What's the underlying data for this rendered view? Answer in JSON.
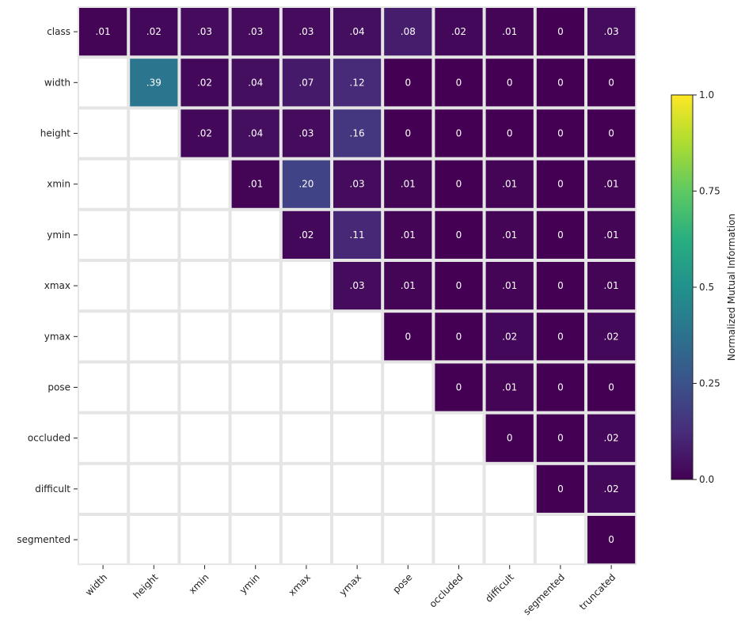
{
  "chart_data": {
    "type": "heatmap",
    "title": "",
    "rows": [
      "class",
      "width",
      "height",
      "xmin",
      "ymin",
      "xmax",
      "ymax",
      "pose",
      "occluded",
      "difficult",
      "segmented"
    ],
    "columns": [
      "width",
      "height",
      "xmin",
      "ymin",
      "xmax",
      "ymax",
      "pose",
      "occluded",
      "difficult",
      "segmented",
      "truncated"
    ],
    "values": [
      [
        0.01,
        0.02,
        0.03,
        0.03,
        0.03,
        0.04,
        0.08,
        0.02,
        0.01,
        0,
        0.03
      ],
      [
        null,
        0.39,
        0.02,
        0.04,
        0.07,
        0.12,
        0,
        0,
        0,
        0,
        0
      ],
      [
        null,
        null,
        0.02,
        0.04,
        0.03,
        0.16,
        0,
        0,
        0,
        0,
        0
      ],
      [
        null,
        null,
        null,
        0.01,
        0.2,
        0.03,
        0.01,
        0,
        0.01,
        0,
        0.01
      ],
      [
        null,
        null,
        null,
        null,
        0.02,
        0.11,
        0.01,
        0,
        0.01,
        0,
        0.01
      ],
      [
        null,
        null,
        null,
        null,
        null,
        0.03,
        0.01,
        0,
        0.01,
        0,
        0.01
      ],
      [
        null,
        null,
        null,
        null,
        null,
        null,
        0,
        0,
        0.02,
        0,
        0.02
      ],
      [
        null,
        null,
        null,
        null,
        null,
        null,
        null,
        0,
        0.01,
        0,
        0
      ],
      [
        null,
        null,
        null,
        null,
        null,
        null,
        null,
        null,
        0,
        0,
        0.02
      ],
      [
        null,
        null,
        null,
        null,
        null,
        null,
        null,
        null,
        null,
        0,
        0.02
      ],
      [
        null,
        null,
        null,
        null,
        null,
        null,
        null,
        null,
        null,
        null,
        0
      ]
    ],
    "cell_labels": [
      [
        ".01",
        ".02",
        ".03",
        ".03",
        ".03",
        ".04",
        ".08",
        ".02",
        ".01",
        "0",
        ".03"
      ],
      [
        null,
        ".39",
        ".02",
        ".04",
        ".07",
        ".12",
        "0",
        "0",
        "0",
        "0",
        "0"
      ],
      [
        null,
        null,
        ".02",
        ".04",
        ".03",
        ".16",
        "0",
        "0",
        "0",
        "0",
        "0"
      ],
      [
        null,
        null,
        null,
        ".01",
        ".20",
        ".03",
        ".01",
        "0",
        ".01",
        "0",
        ".01"
      ],
      [
        null,
        null,
        null,
        null,
        ".02",
        ".11",
        ".01",
        "0",
        ".01",
        "0",
        ".01"
      ],
      [
        null,
        null,
        null,
        null,
        null,
        ".03",
        ".01",
        "0",
        ".01",
        "0",
        ".01"
      ],
      [
        null,
        null,
        null,
        null,
        null,
        null,
        "0",
        "0",
        ".02",
        "0",
        ".02"
      ],
      [
        null,
        null,
        null,
        null,
        null,
        null,
        null,
        "0",
        ".01",
        "0",
        "0"
      ],
      [
        null,
        null,
        null,
        null,
        null,
        null,
        null,
        null,
        "0",
        "0",
        ".02"
      ],
      [
        null,
        null,
        null,
        null,
        null,
        null,
        null,
        null,
        null,
        "0",
        ".02"
      ],
      [
        null,
        null,
        null,
        null,
        null,
        null,
        null,
        null,
        null,
        null,
        "0"
      ]
    ],
    "colorscale": "viridis",
    "vmin": 0,
    "vmax": 1,
    "colorbar": {
      "label": "Normalized Mutual Information",
      "ticks": [
        0.0,
        0.25,
        0.5,
        0.75,
        1.0
      ],
      "tick_labels": [
        "0.0",
        "0.25",
        "0.5",
        "0.75",
        "1.0"
      ]
    },
    "empty_cell_color": "#ffffff",
    "grid_color": "#e5e5e5"
  }
}
